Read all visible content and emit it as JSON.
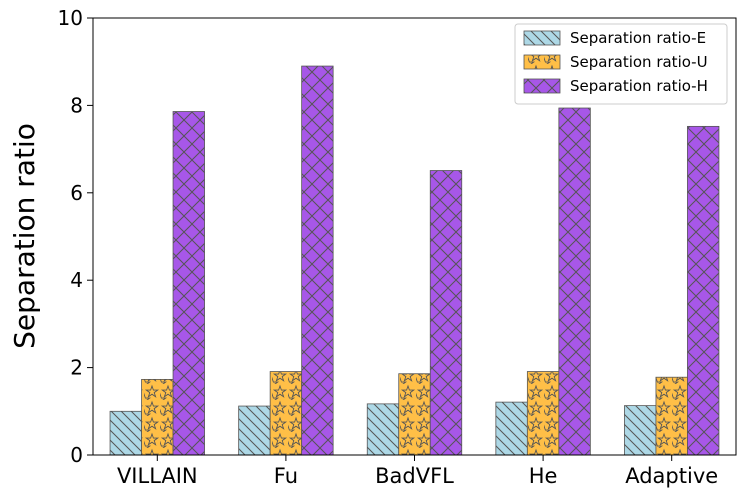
{
  "chart_data": {
    "type": "bar",
    "title": "",
    "xlabel": "",
    "ylabel": "Separation ratio",
    "ylim": [
      0,
      10
    ],
    "yticks": [
      0,
      2,
      4,
      6,
      8,
      10
    ],
    "categories": [
      "VILLAIN",
      "Fu",
      "BadVFL",
      "He",
      "Adaptive"
    ],
    "series": [
      {
        "name": "Separation ratio-E",
        "values": [
          1.0,
          1.12,
          1.17,
          1.21,
          1.13
        ],
        "color": "#add8e6",
        "pattern": "diagonal-backslash"
      },
      {
        "name": "Separation ratio-U",
        "values": [
          1.73,
          1.91,
          1.86,
          1.91,
          1.78
        ],
        "color": "#ffbf47",
        "pattern": "stars"
      },
      {
        "name": "Separation ratio-H",
        "values": [
          7.86,
          8.9,
          6.51,
          7.94,
          7.52
        ],
        "color": "#a757e8",
        "pattern": "crosshatch"
      }
    ],
    "legend_position": "top-right",
    "grid": false
  }
}
